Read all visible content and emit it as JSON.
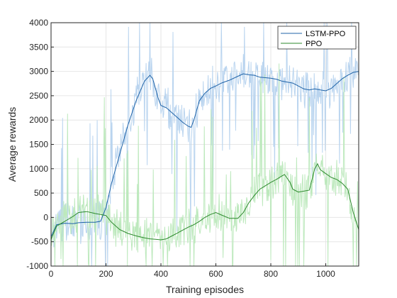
{
  "chart_data": {
    "type": "line",
    "xlabel": "Training episodes",
    "ylabel": "Average rewards",
    "xlim": [
      0,
      1120
    ],
    "ylim": [
      -1000,
      4000
    ],
    "x_ticks": [
      0,
      200,
      400,
      600,
      800,
      1000
    ],
    "y_ticks": [
      -1000,
      -500,
      0,
      500,
      1000,
      1500,
      2000,
      2500,
      3000,
      3500,
      4000
    ],
    "grid": true,
    "legend_position": "top-right",
    "series": [
      {
        "name": "LSTM-PPO",
        "color": "#1f63a8",
        "raw_color": "#b9d4ef",
        "x": [
          0,
          20,
          50,
          80,
          100,
          130,
          160,
          180,
          200,
          220,
          250,
          280,
          310,
          340,
          360,
          370,
          380,
          390,
          400,
          420,
          440,
          460,
          480,
          500,
          510,
          520,
          540,
          560,
          580,
          600,
          620,
          650,
          680,
          700,
          720,
          740,
          760,
          780,
          800,
          820,
          840,
          860,
          880,
          900,
          920,
          940,
          960,
          980,
          1000,
          1020,
          1040,
          1060,
          1080,
          1100,
          1120
        ],
        "y": [
          -400,
          -150,
          -120,
          -130,
          -110,
          -100,
          -100,
          -80,
          200,
          700,
          1300,
          1900,
          2400,
          2800,
          2920,
          2850,
          2650,
          2450,
          2300,
          2250,
          2150,
          2050,
          1950,
          1870,
          1850,
          2000,
          2400,
          2550,
          2650,
          2700,
          2760,
          2820,
          2900,
          2950,
          2930,
          2920,
          2880,
          2870,
          2860,
          2840,
          2800,
          2780,
          2760,
          2700,
          2640,
          2620,
          2640,
          2620,
          2600,
          2650,
          2750,
          2850,
          2920,
          2980,
          3000
        ]
      },
      {
        "name": "PPO",
        "color": "#2d8a2d",
        "raw_color": "#bde9bd",
        "x": [
          0,
          20,
          50,
          80,
          100,
          130,
          160,
          180,
          200,
          220,
          250,
          280,
          310,
          340,
          360,
          380,
          400,
          420,
          440,
          460,
          480,
          500,
          520,
          540,
          560,
          580,
          600,
          620,
          650,
          680,
          700,
          720,
          740,
          760,
          780,
          800,
          820,
          840,
          850,
          860,
          870,
          880,
          900,
          920,
          940,
          960,
          970,
          980,
          1000,
          1020,
          1040,
          1060,
          1080,
          1100,
          1120
        ],
        "y": [
          -450,
          -180,
          -80,
          20,
          100,
          120,
          80,
          60,
          40,
          -100,
          -250,
          -330,
          -380,
          -420,
          -440,
          -450,
          -460,
          -440,
          -380,
          -320,
          -260,
          -200,
          -150,
          -80,
          0,
          60,
          100,
          50,
          -20,
          -20,
          100,
          300,
          450,
          580,
          650,
          720,
          780,
          850,
          880,
          800,
          720,
          580,
          520,
          540,
          560,
          1000,
          1100,
          980,
          900,
          820,
          780,
          700,
          580,
          100,
          -250
        ]
      }
    ]
  }
}
